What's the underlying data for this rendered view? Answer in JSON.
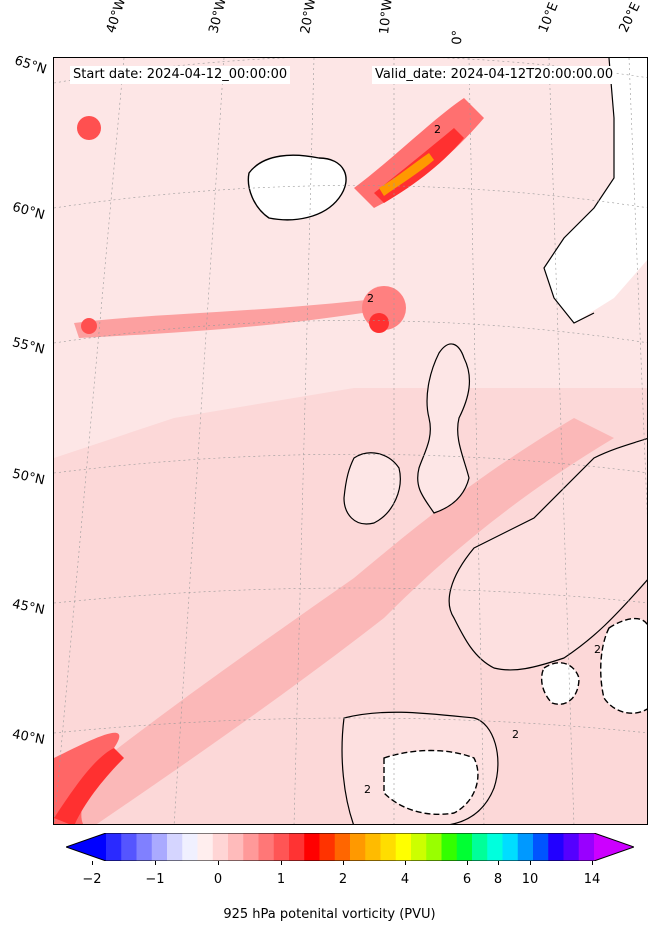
{
  "header": {
    "start_date": "Start date: 2024-04-12_00:00:00",
    "valid_date": "Valid_date: 2024-04-12T20:00:00.00"
  },
  "longitude_labels": [
    "40°W",
    "30°W",
    "20°W",
    "10°W",
    "0°",
    "10°E",
    "20°E"
  ],
  "latitude_labels": [
    "65°N",
    "60°N",
    "55°N",
    "50°N",
    "45°N",
    "40°N"
  ],
  "contour_label": "2",
  "colorbar": {
    "label": "925 hPa potenital vorticity (PVU)",
    "tick_labels": [
      "−2",
      "−1",
      "0",
      "1",
      "2",
      "4",
      "6",
      "8",
      "10",
      "14"
    ],
    "colors": [
      "#0000ff",
      "#2a2aff",
      "#5555ff",
      "#8080ff",
      "#aaaaff",
      "#d5d5ff",
      "#f0f0ff",
      "#ffeeee",
      "#ffd5d5",
      "#ffbbbb",
      "#ff9999",
      "#ff7777",
      "#ff5555",
      "#ff3333",
      "#ff0000",
      "#ff3300",
      "#ff6600",
      "#ff9900",
      "#ffbb00",
      "#ffdd00",
      "#ffff00",
      "#ccff00",
      "#99ff00",
      "#33ff00",
      "#00ff33",
      "#00ff99",
      "#00ffdd",
      "#00ddff",
      "#0099ff",
      "#0055ff",
      "#2200ff",
      "#5500ff",
      "#9900ff",
      "#cc00ff"
    ]
  }
}
